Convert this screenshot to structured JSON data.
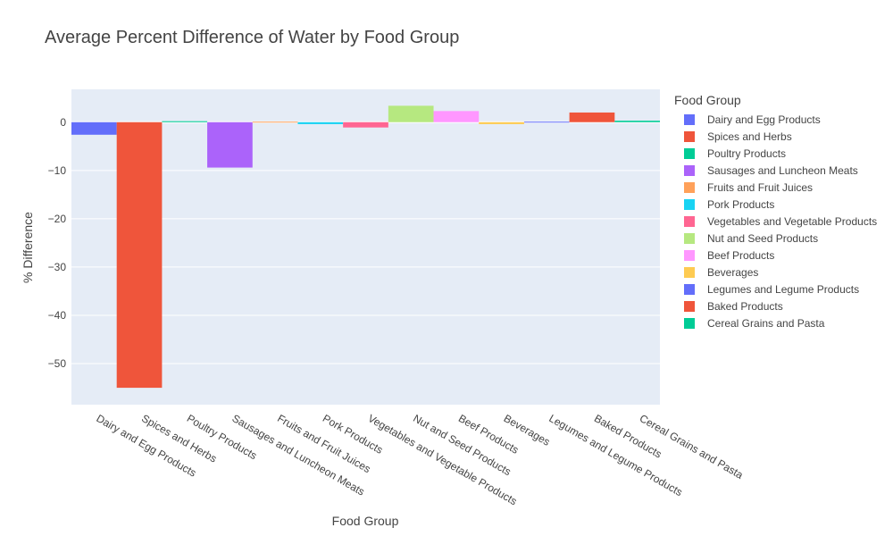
{
  "chart_data": {
    "type": "bar",
    "title": "Average Percent Difference of Water by Food Group",
    "xlabel": "Food Group",
    "ylabel": "% Difference",
    "legend_title": "Food Group",
    "legend_position": "right",
    "ylim": [
      -58.5,
      6.8
    ],
    "yticks": [
      0,
      -10,
      -20,
      -30,
      -40,
      -50
    ],
    "ytick_labels": [
      "0",
      "−10",
      "−20",
      "−30",
      "−40",
      "−50"
    ],
    "grid": true,
    "categories": [
      "Dairy and Egg Products",
      "Spices and Herbs",
      "Poultry Products",
      "Sausages and Luncheon Meats",
      "Fruits and Fruit Juices",
      "Pork Products",
      "Vegetables and Vegetable Products",
      "Nut and Seed Products",
      "Beef Products",
      "Beverages",
      "Legumes and Legume Products",
      "Baked Products",
      "Cereal Grains and Pasta"
    ],
    "values": [
      -2.6,
      -55.0,
      0.2,
      -9.4,
      0.1,
      -0.4,
      -1.1,
      3.4,
      2.3,
      -0.4,
      0.1,
      2.0,
      0.3
    ],
    "colors": [
      "#636efa",
      "#EF553B",
      "#00cc96",
      "#ab63fa",
      "#FFA15A",
      "#19d3f3",
      "#FF6692",
      "#B6E880",
      "#FF97FF",
      "#FECB52",
      "#636efa",
      "#EF553B",
      "#00cc96"
    ],
    "plot_background": "#e5ecf6",
    "gridline_color": "#ffffff"
  }
}
